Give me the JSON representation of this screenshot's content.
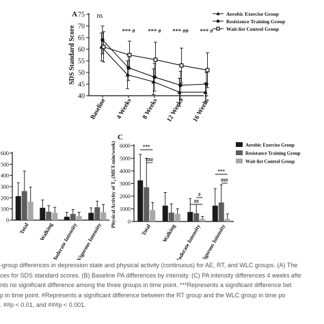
{
  "chart_data": [
    {
      "type": "line",
      "panel_letter": "A",
      "ylabel": "SDS Standard Score",
      "ylim": [
        40,
        75
      ],
      "yticks": [
        40,
        45,
        50,
        55,
        60,
        65,
        70,
        75
      ],
      "categories": [
        "Baseline",
        "4 Weeks",
        "8 Weeks",
        "12 Weeks",
        "16 Weeks"
      ],
      "legend_position": "top-right",
      "series": [
        {
          "name": "Aerobic Exercise Group",
          "marker": "triangle",
          "values": [
            61,
            49,
            46,
            41.5,
            41.5
          ],
          "errors": [
            6,
            6,
            5.5,
            6,
            4
          ]
        },
        {
          "name": "Resistance Training Group",
          "marker": "circle",
          "values": [
            64,
            52,
            48,
            44.5,
            45
          ],
          "errors": [
            6,
            5.5,
            6,
            6,
            5
          ]
        },
        {
          "name": "Wait-list Control Group",
          "marker": "square",
          "values": [
            61,
            57.5,
            55.5,
            53,
            51
          ],
          "errors": [
            6.5,
            6,
            7.5,
            7.5,
            7.5
          ]
        }
      ],
      "annotations": [
        "ns",
        "*** #",
        "*** #",
        "*** ##",
        "*** #"
      ]
    },
    {
      "type": "bar",
      "panel_letter": "",
      "ylim": [
        0,
        600
      ],
      "yticks": [
        "0",
        "100",
        "200",
        "300",
        "400",
        "500",
        "600"
      ],
      "categories": [
        "Total",
        "Walking",
        "Moderate Intensity",
        "Vigorous Intensity"
      ],
      "series": [
        {
          "values": [
            215,
            110,
            30,
            65
          ],
          "errors": [
            120,
            70,
            40,
            45
          ]
        },
        {
          "values": [
            260,
            75,
            55,
            115
          ],
          "errors": [
            180,
            55,
            40,
            55
          ]
        },
        {
          "values": [
            165,
            65,
            35,
            70
          ],
          "errors": [
            130,
            50,
            35,
            70
          ]
        }
      ]
    },
    {
      "type": "bar",
      "panel_letter": "C",
      "ylabel": "Physical Activity of T₄ (MET-min/week)",
      "ylim": [
        0,
        6000
      ],
      "yticks": [
        0,
        1000,
        2000,
        3000,
        4000,
        5000,
        6000
      ],
      "categories": [
        "Total",
        "Walking",
        "Moderate Intensity",
        "Vigorous Intensity"
      ],
      "legend_position": "top-right",
      "series": [
        {
          "name": "Aerobic Exercise Group",
          "values": [
            3250,
            1250,
            750,
            1250
          ],
          "errors": [
            2050,
            1050,
            1050,
            1350
          ]
        },
        {
          "name": "Resistance Training Group",
          "values": [
            2700,
            700,
            650,
            1500
          ],
          "errors": [
            2300,
            700,
            700,
            1400
          ]
        },
        {
          "name": "Wait-list Control Group",
          "values": [
            900,
            600,
            200,
            200
          ],
          "errors": [
            600,
            400,
            200,
            400
          ]
        }
      ],
      "annotations": [
        "***",
        "###",
        "#",
        "##",
        "***",
        "###"
      ]
    }
  ],
  "caption_lines": [
    "-group differences in depression state and physical activity (continuous) for AE, RT, and WLC groups. (A) The",
    "ces for SDS standard scores. (B) Baseline PA differences by intensity. (C) PA intensity differences 4 weeks afte",
    "nts no significant difference among the three groups in time point. ***Represents a significant difference bet",
    "p in time point. #Represents a significant difference between the RT group and the WLC group in time po",
    ". ##p < 0.01, and ###p < 0.001."
  ],
  "colors": {
    "series1": "#1a1a1a",
    "series2": "#5e5e5e",
    "series3": "#a8a8a8",
    "axis": "#111111"
  }
}
